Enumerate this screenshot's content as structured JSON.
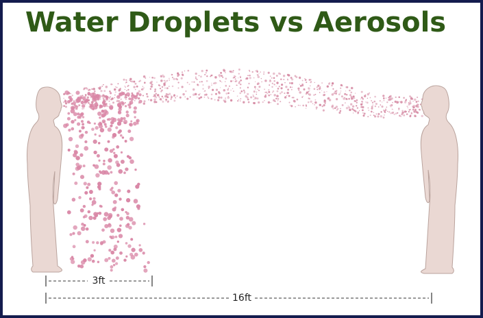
{
  "title": "Water Droplets vs Aerosols",
  "measurements": [
    {
      "label": "3ft"
    },
    {
      "label": "16ft"
    }
  ]
}
